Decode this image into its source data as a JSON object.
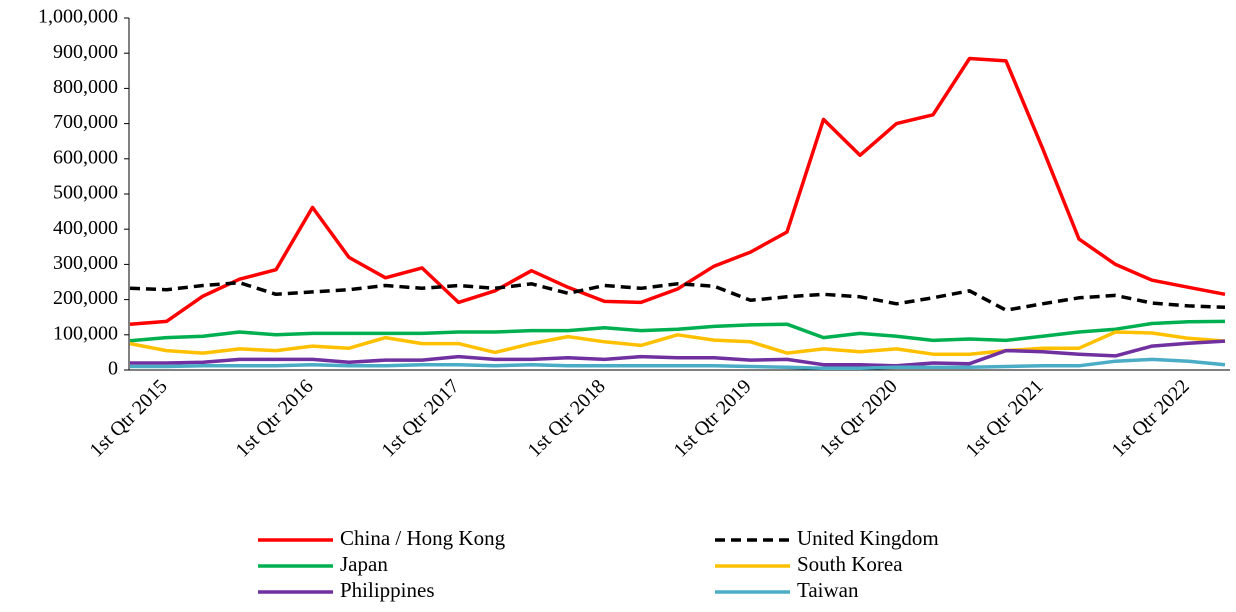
{
  "chart_data": {
    "type": "line",
    "categories": [
      "1st Qtr 2015",
      null,
      null,
      null,
      "1st Qtr 2016",
      null,
      null,
      null,
      "1st Qtr 2017",
      null,
      null,
      null,
      "1st Qtr 2018",
      null,
      null,
      null,
      "1st Qtr 2019",
      null,
      null,
      null,
      "1st Qtr 2020",
      null,
      null,
      null,
      "1st Qtr 2021",
      null,
      null,
      null,
      "1st Qtr 2022",
      null,
      null
    ],
    "ylim": [
      0,
      1000000
    ],
    "yticks": [
      0,
      {
        "value": 100000,
        "label": "100,000"
      },
      {
        "value": 200000,
        "label": "200,000"
      },
      {
        "value": 300000,
        "label": "300,000"
      },
      {
        "value": 400000,
        "label": "400,000"
      },
      {
        "value": 500000,
        "label": "500,000"
      },
      {
        "value": 600000,
        "label": "600,000"
      },
      {
        "value": 700000,
        "label": "700,000"
      },
      {
        "value": 800000,
        "label": "800,000"
      },
      {
        "value": 900000,
        "label": "900,000"
      },
      {
        "value": 1000000,
        "label": "1,000,000"
      }
    ],
    "legend": "bottom",
    "series": [
      {
        "name": "China / Hong Kong",
        "color": "#ff0000",
        "dashed": false,
        "values": [
          130000,
          138000,
          210000,
          258000,
          285000,
          462000,
          320000,
          262000,
          290000,
          192000,
          225000,
          282000,
          235000,
          195000,
          192000,
          230000,
          295000,
          335000,
          392000,
          712000,
          610000,
          700000,
          725000,
          885000,
          878000,
          630000,
          372000,
          300000,
          255000,
          235000,
          215000
        ]
      },
      {
        "name": "United Kingdom",
        "color": "#000000",
        "dashed": true,
        "values": [
          232000,
          228000,
          240000,
          248000,
          215000,
          222000,
          228000,
          240000,
          232000,
          240000,
          232000,
          245000,
          218000,
          240000,
          232000,
          245000,
          238000,
          198000,
          208000,
          215000,
          208000,
          188000,
          205000,
          225000,
          170000,
          188000,
          205000,
          212000,
          190000,
          182000,
          178000
        ]
      },
      {
        "name": "Japan",
        "color": "#00b050",
        "dashed": false,
        "values": [
          83000,
          92000,
          96000,
          108000,
          100000,
          104000,
          104000,
          104000,
          104000,
          108000,
          108000,
          112000,
          112000,
          120000,
          112000,
          116000,
          124000,
          128000,
          130000,
          92000,
          104000,
          96000,
          84000,
          88000,
          84000,
          96000,
          108000,
          116000,
          132000,
          137000,
          138000
        ]
      },
      {
        "name": "South Korea",
        "color": "#ffc000",
        "dashed": false,
        "values": [
          75000,
          55000,
          48000,
          60000,
          55000,
          68000,
          62000,
          92000,
          75000,
          75000,
          50000,
          75000,
          95000,
          80000,
          70000,
          100000,
          85000,
          80000,
          48000,
          60000,
          52000,
          60000,
          45000,
          45000,
          55000,
          62000,
          62000,
          108000,
          105000,
          90000,
          82000
        ]
      },
      {
        "name": "Philippines",
        "color": "#7030a0",
        "dashed": false,
        "values": [
          20000,
          20000,
          22000,
          30000,
          30000,
          30000,
          22000,
          28000,
          28000,
          38000,
          30000,
          30000,
          35000,
          30000,
          38000,
          35000,
          35000,
          28000,
          30000,
          15000,
          15000,
          12000,
          20000,
          18000,
          55000,
          52000,
          45000,
          40000,
          68000,
          76000,
          82000
        ]
      },
      {
        "name": "Taiwan",
        "color": "#4bacc6",
        "dashed": false,
        "values": [
          10000,
          10000,
          12000,
          12000,
          12000,
          15000,
          12000,
          12000,
          15000,
          15000,
          12000,
          15000,
          12000,
          12000,
          12000,
          12000,
          12000,
          10000,
          8000,
          5000,
          5000,
          8000,
          8000,
          8000,
          10000,
          12000,
          12000,
          25000,
          30000,
          25000,
          15000
        ]
      }
    ]
  }
}
